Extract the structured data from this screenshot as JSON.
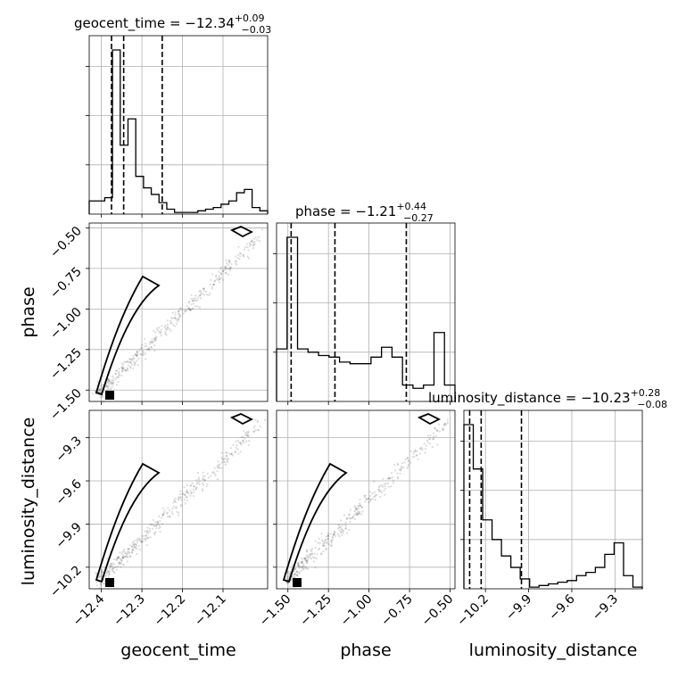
{
  "chart_data": {
    "type": "corner",
    "parameters": [
      "geocent_time",
      "phase",
      "luminosity_distance"
    ],
    "axis_labels": {
      "geocent_time": "geocent_time",
      "phase": "phase",
      "luminosity_distance": "luminosity_distance"
    },
    "ranges": {
      "geocent_time": [
        -12.43,
        -11.99
      ],
      "phase": [
        -1.57,
        -0.47
      ],
      "luminosity_distance": [
        -10.35,
        -9.11
      ]
    },
    "ticks": {
      "geocent_time": [
        -12.4,
        -12.3,
        -12.2,
        -12.1
      ],
      "phase": [
        -1.5,
        -1.25,
        -1.0,
        -0.75,
        -0.5
      ],
      "luminosity_distance": [
        -10.2,
        -9.9,
        -9.6,
        -9.3
      ]
    },
    "tick_labels": {
      "geocent_time": [
        "−12.4",
        "−12.3",
        "−12.2",
        "−12.1"
      ],
      "phase": [
        "−1.50",
        "−1.25",
        "−1.00",
        "−0.75",
        "−0.50"
      ],
      "luminosity_distance": [
        "−10.2",
        "−9.9",
        "−9.6",
        "−9.3"
      ]
    },
    "phase_y_tick_labels": [
      "−0.50",
      "−0.75",
      "−1.00",
      "−1.25",
      "−1.50"
    ],
    "ld_y_tick_labels": [
      "−9.3",
      "−9.6",
      "−9.9",
      "−10.2"
    ],
    "titles": {
      "geocent_time": {
        "name": "geocent_time",
        "median": "−12.34",
        "plus": "+0.09",
        "minus": "−0.03"
      },
      "phase": {
        "name": "phase",
        "median": "−1.21",
        "plus": "+0.44",
        "minus": "−0.27"
      },
      "luminosity_distance": {
        "name": "luminosity_distance",
        "median": "−10.23",
        "plus": "+0.28",
        "minus": "−0.08"
      }
    },
    "quantiles": {
      "geocent_time": [
        -12.375,
        -12.345,
        -12.25
      ],
      "phase": [
        -1.48,
        -1.21,
        -0.77
      ],
      "luminosity_distance": [
        -10.31,
        -10.23,
        -9.95
      ]
    },
    "histograms": {
      "geocent_time": [
        0.08,
        0.08,
        0.1,
        1.0,
        0.42,
        0.58,
        0.23,
        0.16,
        0.12,
        0.07,
        0.03,
        0.01,
        0.01,
        0.01,
        0.02,
        0.03,
        0.04,
        0.06,
        0.08,
        0.13,
        0.15,
        0.04,
        0.02
      ],
      "phase": [
        0.32,
        1.0,
        0.32,
        0.3,
        0.28,
        0.27,
        0.24,
        0.23,
        0.23,
        0.27,
        0.33,
        0.27,
        0.1,
        0.08,
        0.1,
        0.42,
        0.1
      ],
      "luminosity_distance": [
        1.0,
        0.73,
        0.42,
        0.3,
        0.2,
        0.13,
        0.06,
        0.01,
        0.02,
        0.03,
        0.04,
        0.05,
        0.08,
        0.1,
        0.13,
        0.21,
        0.28,
        0.08,
        0.01
      ]
    },
    "grid": true
  }
}
